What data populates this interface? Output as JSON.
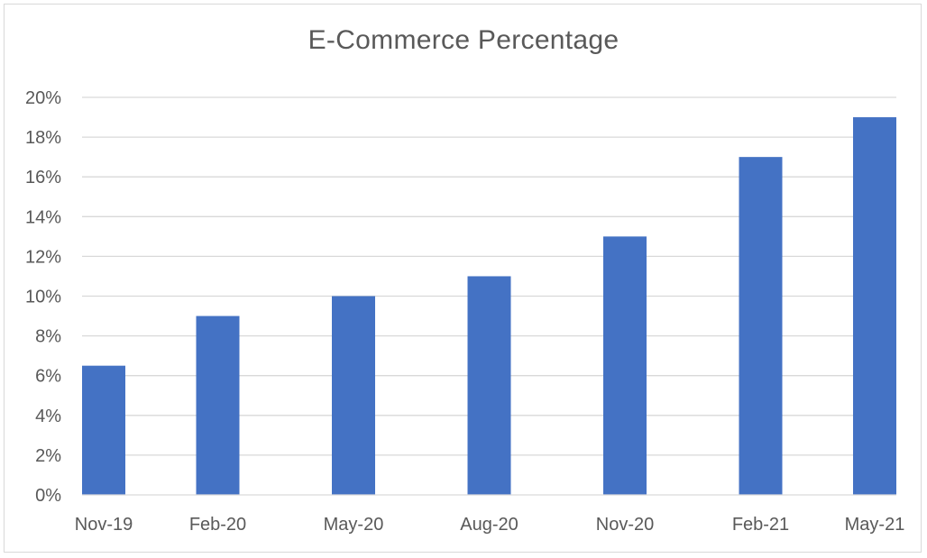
{
  "chart_data": {
    "type": "bar",
    "title": "E-Commerce Percentage",
    "xlabel": "",
    "ylabel": "",
    "categories": [
      "Nov-19",
      "Feb-20",
      "May-20",
      "Aug-20",
      "Nov-20",
      "Feb-21",
      "May-21"
    ],
    "series": [
      {
        "values": [
          6.5,
          9,
          10,
          11,
          13,
          17,
          19
        ]
      }
    ],
    "ylim": [
      0,
      20
    ],
    "yticks": [
      0,
      2,
      4,
      6,
      8,
      10,
      12,
      14,
      16,
      18,
      20
    ],
    "ytick_labels": [
      "0%",
      "2%",
      "4%",
      "6%",
      "8%",
      "10%",
      "12%",
      "14%",
      "16%",
      "18%",
      "20%"
    ],
    "grid": true,
    "legend": "none",
    "colors": {
      "bar": "#4472c4",
      "grid": "#d9d9d9",
      "text": "#595959",
      "border": "#d9d9d9"
    }
  }
}
